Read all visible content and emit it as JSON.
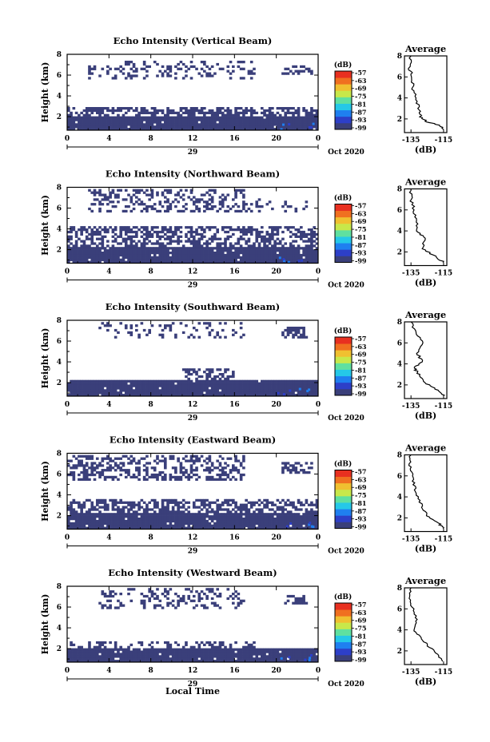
{
  "figure": {
    "xlabel": "Local Time",
    "date_label": "Oct 2020",
    "day_label": "29"
  },
  "chart_data": [
    {
      "type": "heatmap",
      "title": "Echo Intensity (Vertical Beam)",
      "ylabel": "Height (km)",
      "xlim": [
        0,
        24
      ],
      "ylim": [
        0.7,
        8
      ],
      "x_ticks": [
        "0",
        "4",
        "8",
        "12",
        "16",
        "20",
        "0"
      ],
      "y_ticks": [
        "2",
        "4",
        "6",
        "8"
      ],
      "colorbar": {
        "unit": "(dB)",
        "ticks": [
          "-57",
          "-63",
          "-69",
          "-75",
          "-81",
          "-87",
          "-93",
          "-99"
        ]
      },
      "layers": [
        {
          "bottom": 0.7,
          "top": 2.1,
          "density": 0.98,
          "x_from": 0,
          "x_to": 24
        },
        {
          "bottom": 2.1,
          "top": 3.0,
          "density": 0.6,
          "x_from": 0,
          "x_to": 24
        },
        {
          "bottom": 5.5,
          "top": 7.3,
          "density": 0.25,
          "x_from": 2,
          "x_to": 18
        },
        {
          "bottom": 6.0,
          "top": 7.0,
          "density": 0.55,
          "x_from": 20.5,
          "x_to": 23.5
        }
      ],
      "average": {
        "title": "Average",
        "xlabel": "(dB)",
        "x_ticks": [
          "-135",
          "-115"
        ],
        "y_ticks": [
          "2",
          "4",
          "6",
          "8"
        ],
        "profile": [
          [
            1.0,
            -115
          ],
          [
            1.4,
            -117
          ],
          [
            1.7,
            -125
          ],
          [
            2.2,
            -129
          ],
          [
            3.0,
            -130
          ],
          [
            4.0,
            -132
          ],
          [
            5.0,
            -134
          ],
          [
            6.0,
            -134
          ],
          [
            6.8,
            -136
          ],
          [
            8.0,
            -135
          ]
        ]
      }
    },
    {
      "type": "heatmap",
      "title": "Echo Intensity (Northward Beam)",
      "ylabel": "Height (km)",
      "xlim": [
        0,
        24
      ],
      "ylim": [
        0.7,
        8
      ],
      "x_ticks": [
        "0",
        "4",
        "8",
        "12",
        "16",
        "20",
        "0"
      ],
      "y_ticks": [
        "2",
        "4",
        "6",
        "8"
      ],
      "colorbar": {
        "unit": "(dB)",
        "ticks": [
          "-57",
          "-63",
          "-69",
          "-75",
          "-81",
          "-87",
          "-93",
          "-99"
        ]
      },
      "layers": [
        {
          "bottom": 0.7,
          "top": 2.2,
          "density": 0.97,
          "x_from": 0,
          "x_to": 24
        },
        {
          "bottom": 2.2,
          "top": 4.2,
          "density": 0.55,
          "x_from": 0,
          "x_to": 24
        },
        {
          "bottom": 5.5,
          "top": 8.0,
          "density": 0.35,
          "x_from": 2,
          "x_to": 17
        },
        {
          "bottom": 5.5,
          "top": 7.0,
          "density": 0.15,
          "x_from": 17,
          "x_to": 23
        }
      ],
      "average": {
        "title": "Average",
        "xlabel": "(dB)",
        "x_ticks": [
          "-135",
          "-115"
        ],
        "y_ticks": [
          "2",
          "4",
          "6",
          "8"
        ],
        "profile": [
          [
            1.0,
            -115
          ],
          [
            1.6,
            -120
          ],
          [
            2.3,
            -128
          ],
          [
            3.3,
            -127
          ],
          [
            4.0,
            -131
          ],
          [
            5.0,
            -132
          ],
          [
            6.0,
            -133
          ],
          [
            7.0,
            -135
          ],
          [
            8.0,
            -135
          ]
        ]
      }
    },
    {
      "type": "heatmap",
      "title": "Echo Intensity (Southward Beam)",
      "ylabel": "Height (km)",
      "xlim": [
        0,
        24
      ],
      "ylim": [
        0.7,
        8
      ],
      "x_ticks": [
        "0",
        "4",
        "8",
        "12",
        "16",
        "20",
        "0"
      ],
      "y_ticks": [
        "2",
        "4",
        "6",
        "8"
      ],
      "colorbar": {
        "unit": "(dB)",
        "ticks": [
          "-57",
          "-63",
          "-69",
          "-75",
          "-81",
          "-87",
          "-93",
          "-99"
        ]
      },
      "layers": [
        {
          "bottom": 0.7,
          "top": 2.2,
          "density": 0.97,
          "x_from": 0,
          "x_to": 24
        },
        {
          "bottom": 2.3,
          "top": 3.3,
          "density": 0.45,
          "x_from": 11,
          "x_to": 16
        },
        {
          "bottom": 6.2,
          "top": 8.0,
          "density": 0.2,
          "x_from": 3,
          "x_to": 17
        },
        {
          "bottom": 6.2,
          "top": 7.4,
          "density": 0.6,
          "x_from": 20.5,
          "x_to": 23
        }
      ],
      "average": {
        "title": "Average",
        "xlabel": "(dB)",
        "x_ticks": [
          "-135",
          "-115"
        ],
        "y_ticks": [
          "2",
          "4",
          "6",
          "8"
        ],
        "profile": [
          [
            1.0,
            -115
          ],
          [
            1.6,
            -120
          ],
          [
            2.2,
            -126
          ],
          [
            3.0,
            -130
          ],
          [
            3.6,
            -133
          ],
          [
            4.2,
            -128
          ],
          [
            5.0,
            -131
          ],
          [
            6.0,
            -128
          ],
          [
            7.0,
            -132
          ],
          [
            8.0,
            -135
          ]
        ]
      }
    },
    {
      "type": "heatmap",
      "title": "Echo Intensity (Eastward Beam)",
      "ylabel": "Height (km)",
      "xlim": [
        0,
        24
      ],
      "ylim": [
        0.7,
        8
      ],
      "x_ticks": [
        "0",
        "4",
        "8",
        "12",
        "16",
        "20",
        "0"
      ],
      "y_ticks": [
        "2",
        "4",
        "6",
        "8"
      ],
      "colorbar": {
        "unit": "(dB)",
        "ticks": [
          "-57",
          "-63",
          "-69",
          "-75",
          "-81",
          "-87",
          "-93",
          "-99"
        ]
      },
      "layers": [
        {
          "bottom": 0.7,
          "top": 2.2,
          "density": 0.97,
          "x_from": 0,
          "x_to": 24
        },
        {
          "bottom": 2.2,
          "top": 3.6,
          "density": 0.55,
          "x_from": 0,
          "x_to": 24
        },
        {
          "bottom": 5.3,
          "top": 8.0,
          "density": 0.4,
          "x_from": 0,
          "x_to": 17
        },
        {
          "bottom": 6.0,
          "top": 7.2,
          "density": 0.55,
          "x_from": 20.5,
          "x_to": 23.5
        }
      ],
      "average": {
        "title": "Average",
        "xlabel": "(dB)",
        "x_ticks": [
          "-135",
          "-115"
        ],
        "y_ticks": [
          "2",
          "4",
          "6",
          "8"
        ],
        "profile": [
          [
            1.0,
            -115
          ],
          [
            1.5,
            -118
          ],
          [
            2.2,
            -125
          ],
          [
            3.0,
            -128
          ],
          [
            4.0,
            -131
          ],
          [
            5.0,
            -133
          ],
          [
            6.0,
            -134
          ],
          [
            7.0,
            -136
          ],
          [
            8.0,
            -135
          ]
        ]
      }
    },
    {
      "type": "heatmap",
      "title": "Echo Intensity (Westward Beam)",
      "ylabel": "Height (km)",
      "xlim": [
        0,
        24
      ],
      "ylim": [
        0.7,
        8
      ],
      "x_ticks": [
        "0",
        "4",
        "8",
        "12",
        "16",
        "20",
        "0"
      ],
      "y_ticks": [
        "2",
        "4",
        "6",
        "8"
      ],
      "colorbar": {
        "unit": "(dB)",
        "ticks": [
          "-57",
          "-63",
          "-69",
          "-75",
          "-81",
          "-87",
          "-93",
          "-99"
        ]
      },
      "layers": [
        {
          "bottom": 0.7,
          "top": 2.0,
          "density": 0.97,
          "x_from": 0,
          "x_to": 24
        },
        {
          "bottom": 2.0,
          "top": 2.8,
          "density": 0.4,
          "x_from": 0,
          "x_to": 18
        },
        {
          "bottom": 5.8,
          "top": 8.0,
          "density": 0.25,
          "x_from": 3,
          "x_to": 17
        },
        {
          "bottom": 6.2,
          "top": 7.2,
          "density": 0.5,
          "x_from": 20.5,
          "x_to": 23
        }
      ],
      "average": {
        "title": "Average",
        "xlabel": "(dB)",
        "x_ticks": [
          "-135",
          "-115"
        ],
        "y_ticks": [
          "2",
          "4",
          "6",
          "8"
        ],
        "profile": [
          [
            1.0,
            -115
          ],
          [
            1.8,
            -120
          ],
          [
            2.6,
            -125
          ],
          [
            3.4,
            -130
          ],
          [
            4.0,
            -133
          ],
          [
            5.0,
            -131
          ],
          [
            6.0,
            -134
          ],
          [
            7.0,
            -136
          ],
          [
            8.0,
            -135
          ]
        ]
      }
    }
  ],
  "colors": {
    "fill": "#3a3f7a",
    "colorbar": [
      "#3a3f7a",
      "#2d3fc8",
      "#1f7ff0",
      "#25c8e8",
      "#5fe0a0",
      "#c8e84a",
      "#f0c030",
      "#f07020",
      "#e83020"
    ]
  }
}
